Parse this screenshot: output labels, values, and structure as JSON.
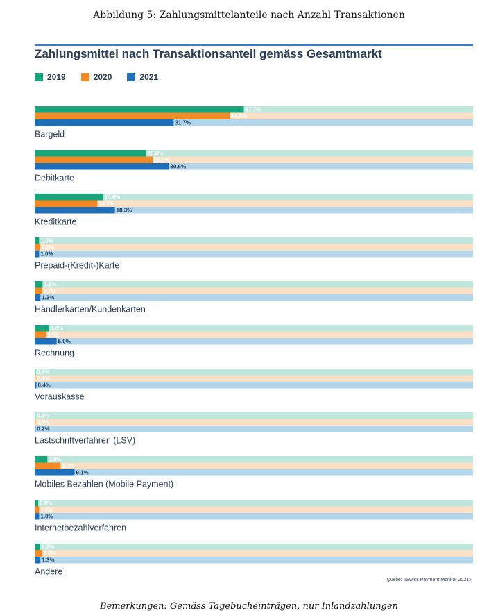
{
  "figure_caption": "Abbildung 5: Zahlungsmittelanteile nach Anzahl Transaktionen",
  "footer_note": "Bemerkungen: Gemäss Tagebucheinträgen, nur Inlandzahlungen",
  "source": "Quelle: «Swiss Payment Monitor 2021»",
  "colors": {
    "2019": "#1aa67a",
    "2020": "#f28a25",
    "2021": "#1e6fb8",
    "bg2019": "#bfe6dc",
    "bg2020": "#fbe0c6",
    "bg2021": "#b3d6ea",
    "text": "#2a3f5a"
  },
  "chart_data": {
    "type": "bar",
    "orientation": "horizontal",
    "title": "Zahlungsmittel nach Transaktionsanteil gemäss Gesamtmarkt",
    "xlim": [
      0,
      100
    ],
    "legend_position": "top-left",
    "categories": [
      "Bargeld",
      "Debitkarte",
      "Kreditkarte",
      "Prepaid-(Kredit-)Karte",
      "Händlerkarten/Kundenkarten",
      "Rechnung",
      "Vorauskasse",
      "Lastschriftverfahren (LSV)",
      "Mobiles Bezahlen (Mobile Payment)",
      "Internetbezahlverfahren",
      "Andere"
    ],
    "series": [
      {
        "name": "2019",
        "values": [
          47.7,
          25.4,
          15.6,
          1.0,
          1.8,
          3.3,
          0.2,
          0.1,
          2.9,
          0.8,
          1.2
        ],
        "labels": [
          "47.7%",
          "25.4%",
          "15.6%",
          "1.0%",
          "1.8%",
          "3.3%",
          "0.2%",
          "0.1%",
          "2.9%",
          "0.8%",
          "1.2%"
        ]
      },
      {
        "name": "2020",
        "values": [
          44.5,
          26.9,
          14.3,
          1.2,
          1.7,
          2.6,
          0.1,
          0.1,
          5.9,
          1.0,
          1.7
        ],
        "labels": [
          "44.5%",
          "26.9%",
          "14.3%",
          "1.2%",
          "1.7%",
          "2.6%",
          "0.1%",
          "0.1%",
          "5.9%",
          "1.0%",
          "1.7%"
        ]
      },
      {
        "name": "2021",
        "values": [
          31.7,
          30.6,
          18.3,
          1.0,
          1.3,
          5.0,
          0.4,
          0.2,
          9.1,
          1.0,
          1.3
        ],
        "labels": [
          "31.7%",
          "30.6%",
          "18.3%",
          "1.0%",
          "1.3%",
          "5.0%",
          "0.4%",
          "0.2%",
          "9.1%",
          "1.0%",
          "1.3%"
        ]
      }
    ]
  }
}
